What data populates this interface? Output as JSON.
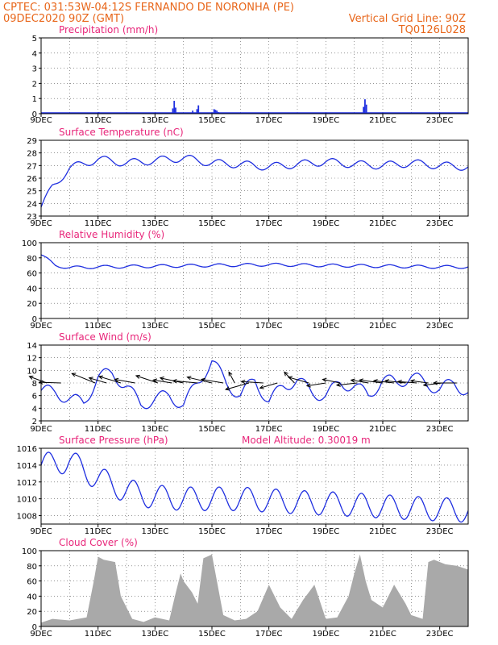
{
  "header": {
    "line1": "CPTEC:  031:53W-04:12S  FERNANDO DE NORONHA (PE)",
    "line2_left": "09DEC2020 90Z (GMT)",
    "line2_right": "Vertical Grid Line: 90Z",
    "line3_right": "TQ0126L028"
  },
  "x_labels": [
    "9DEC",
    "11DEC",
    "13DEC",
    "15DEC",
    "17DEC",
    "19DEC",
    "21DEC",
    "23DEC"
  ],
  "colors": {
    "header": "#e8661a",
    "title": "#e8267a",
    "series": "#1f2fe0",
    "cloud": "#a9a9a9"
  },
  "chart_data": [
    {
      "type": "bar",
      "title": "Precipitation  (mm/h)",
      "ylim": [
        0,
        5
      ],
      "yticks": [
        0,
        1,
        2,
        3,
        4,
        5
      ],
      "x_unit": "days since 09DEC 00Z",
      "x": [
        2.0,
        2.1,
        4.6,
        4.65,
        4.7,
        5.3,
        5.45,
        5.5,
        6.05,
        6.1,
        6.15,
        6.2,
        11.3,
        11.35,
        11.4
      ],
      "values": [
        0.1,
        0.08,
        0.35,
        0.85,
        0.4,
        0.2,
        0.3,
        0.55,
        0.3,
        0.25,
        0.2,
        0.1,
        0.45,
        0.95,
        0.6
      ]
    },
    {
      "type": "line",
      "title": "Surface Temperature  (nC)",
      "ylim": [
        23,
        29
      ],
      "yticks": [
        23,
        24,
        25,
        26,
        27,
        28,
        29
      ],
      "base": [
        [
          0,
          23.7
        ],
        [
          0.4,
          25.3
        ],
        [
          1,
          26.8
        ],
        [
          2,
          27.5
        ],
        [
          3,
          27.2
        ],
        [
          4,
          27.4
        ],
        [
          5,
          27.6
        ],
        [
          6,
          27.2
        ],
        [
          7,
          27.1
        ],
        [
          8,
          26.9
        ],
        [
          9,
          27.1
        ],
        [
          10,
          27.3
        ],
        [
          11,
          27.1
        ],
        [
          12,
          27.0
        ],
        [
          13,
          27.2
        ],
        [
          14,
          27.0
        ],
        [
          15,
          26.9
        ]
      ],
      "diurnal_amp": 0.3
    },
    {
      "type": "line",
      "title": "Relative Humidity  (%)",
      "ylim": [
        0,
        100
      ],
      "yticks": [
        0,
        20,
        40,
        60,
        80,
        100
      ],
      "base": [
        [
          0,
          84
        ],
        [
          0.5,
          70
        ],
        [
          1,
          67
        ],
        [
          2,
          68
        ],
        [
          4,
          69
        ],
        [
          6,
          70
        ],
        [
          8,
          71
        ],
        [
          10,
          70
        ],
        [
          12,
          69
        ],
        [
          14,
          68
        ],
        [
          15,
          68
        ]
      ],
      "diurnal_amp": 2
    },
    {
      "type": "line",
      "title": "Surface Wind  (m/s)",
      "ylim": [
        2,
        14
      ],
      "yticks": [
        2,
        4,
        6,
        8,
        10,
        12,
        14
      ],
      "base": [
        [
          0,
          6.8
        ],
        [
          0.5,
          6.5
        ],
        [
          1,
          5.5
        ],
        [
          1.5,
          4.8
        ],
        [
          2,
          9.0
        ],
        [
          2.5,
          9.5
        ],
        [
          3,
          7.5
        ],
        [
          3.5,
          4.5
        ],
        [
          4,
          5.5
        ],
        [
          4.5,
          6.0
        ],
        [
          5,
          4.5
        ],
        [
          5.5,
          8.0
        ],
        [
          6,
          11.5
        ],
        [
          6.5,
          8.0
        ],
        [
          7,
          6.0
        ],
        [
          7.5,
          8.5
        ],
        [
          8,
          5.0
        ],
        [
          8.5,
          7.5
        ],
        [
          9,
          8.5
        ],
        [
          9.5,
          6.5
        ],
        [
          10,
          6.0
        ],
        [
          10.5,
          8.0
        ],
        [
          11,
          7.5
        ],
        [
          11.5,
          6.0
        ],
        [
          12,
          8.5
        ],
        [
          12.5,
          8.0
        ],
        [
          13,
          9.0
        ],
        [
          13.5,
          8.0
        ],
        [
          14,
          7.0
        ],
        [
          14.5,
          8.0
        ],
        [
          15,
          6.5
        ]
      ],
      "diurnal_amp": 1.0,
      "arrows_y": 8,
      "arrows": [
        [
          0.2,
          -1.2,
          0.9
        ],
        [
          0.7,
          -1.5,
          0.1
        ],
        [
          1.9,
          -1.6,
          1.3
        ],
        [
          2.3,
          -1.2,
          0.7
        ],
        [
          2.8,
          -1.5,
          0.9
        ],
        [
          3.3,
          -1.4,
          0.5
        ],
        [
          4.1,
          -1.5,
          1.0
        ],
        [
          4.6,
          -1.3,
          0.4
        ],
        [
          5.0,
          -1.6,
          0.7
        ],
        [
          5.5,
          -1.7,
          0.3
        ],
        [
          6.0,
          -1.7,
          0.8
        ],
        [
          6.4,
          -1.5,
          0.5
        ],
        [
          6.8,
          -0.4,
          1.5
        ],
        [
          7.3,
          -1.6,
          -0.9
        ],
        [
          7.8,
          -1.5,
          0.2
        ],
        [
          8.3,
          -1.2,
          -0.7
        ],
        [
          8.9,
          -0.7,
          1.5
        ],
        [
          9.4,
          -1.4,
          0.8
        ],
        [
          10.0,
          -1.3,
          -0.4
        ],
        [
          10.5,
          -1.2,
          0.5
        ],
        [
          11.1,
          -1.4,
          -0.3
        ],
        [
          11.5,
          -1.2,
          0.4
        ],
        [
          12.0,
          -1.6,
          0.4
        ],
        [
          12.4,
          -1.4,
          0.3
        ],
        [
          12.8,
          -1.4,
          0.3
        ],
        [
          13.2,
          -1.3,
          0.2
        ],
        [
          13.6,
          -1.2,
          0.3
        ],
        [
          14.1,
          -1.3,
          -0.3
        ],
        [
          14.6,
          -1.6,
          0.0
        ]
      ]
    },
    {
      "type": "line",
      "title": "Surface Pressure  (hPa)",
      "annotation": "Model Altitude: 0.30019  m",
      "ylim": [
        1007,
        1016
      ],
      "yticks": [
        1008,
        1010,
        1012,
        1014,
        1016
      ],
      "base": [
        [
          0,
          1014.0
        ],
        [
          1,
          1014.5
        ],
        [
          1.8,
          1012.8
        ],
        [
          2.8,
          1011.2
        ],
        [
          3.8,
          1010.3
        ],
        [
          5,
          1010.0
        ],
        [
          7,
          1010.0
        ],
        [
          9,
          1009.6
        ],
        [
          11,
          1009.3
        ],
        [
          13,
          1008.9
        ],
        [
          15,
          1008.6
        ]
      ],
      "diurnal_amp": 1.4
    },
    {
      "type": "area",
      "title": "Cloud Cover  (%)",
      "ylim": [
        0,
        100
      ],
      "yticks": [
        0,
        20,
        40,
        60,
        80,
        100
      ],
      "x": [
        0,
        0.4,
        1.0,
        1.6,
        1.85,
        2.0,
        2.2,
        2.6,
        2.8,
        3.2,
        3.6,
        4.0,
        4.5,
        4.7,
        4.9,
        5.0,
        5.3,
        5.5,
        5.7,
        6.0,
        6.4,
        6.8,
        7.2,
        7.6,
        8.0,
        8.4,
        8.8,
        9.2,
        9.6,
        10.0,
        10.4,
        10.8,
        11.0,
        11.2,
        11.4,
        11.6,
        12.0,
        12.4,
        12.8,
        13.0,
        13.4,
        13.6,
        13.8,
        14.2,
        14.6,
        15.0
      ],
      "values": [
        5,
        10,
        8,
        12,
        60,
        92,
        88,
        85,
        40,
        10,
        6,
        12,
        8,
        40,
        70,
        60,
        45,
        30,
        90,
        95,
        15,
        8,
        10,
        20,
        55,
        25,
        10,
        35,
        55,
        10,
        12,
        40,
        70,
        95,
        60,
        35,
        25,
        55,
        30,
        15,
        10,
        85,
        88,
        82,
        80,
        75
      ]
    }
  ]
}
